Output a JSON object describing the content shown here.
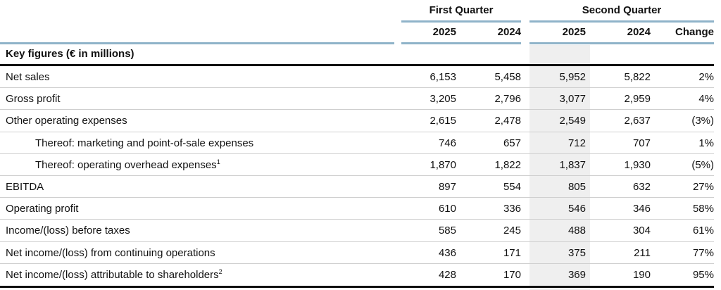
{
  "headers": {
    "group1": "First Quarter",
    "group2": "Second Quarter",
    "col1": "2025",
    "col2": "2024",
    "col3": "2025",
    "col4": "2024",
    "col5": "Change"
  },
  "section_title": "Key figures (€ in millions)",
  "rows": [
    {
      "label": "Net sales",
      "sup": "",
      "indent": false,
      "v": [
        "6,153",
        "5,458",
        "5,952",
        "5,822",
        "2%"
      ]
    },
    {
      "label": "Gross profit",
      "sup": "",
      "indent": false,
      "v": [
        "3,205",
        "2,796",
        "3,077",
        "2,959",
        "4%"
      ]
    },
    {
      "label": "Other operating expenses",
      "sup": "",
      "indent": false,
      "v": [
        "2,615",
        "2,478",
        "2,549",
        "2,637",
        "(3%)"
      ]
    },
    {
      "label": "Thereof: marketing and point-of-sale expenses",
      "sup": "",
      "indent": true,
      "v": [
        "746",
        "657",
        "712",
        "707",
        "1%"
      ]
    },
    {
      "label": "Thereof: operating overhead expenses",
      "sup": "1",
      "indent": true,
      "v": [
        "1,870",
        "1,822",
        "1,837",
        "1,930",
        "(5%)"
      ]
    },
    {
      "label": "EBITDA",
      "sup": "",
      "indent": false,
      "v": [
        "897",
        "554",
        "805",
        "632",
        "27%"
      ]
    },
    {
      "label": "Operating profit",
      "sup": "",
      "indent": false,
      "v": [
        "610",
        "336",
        "546",
        "346",
        "58%"
      ]
    },
    {
      "label": "Income/(loss) before taxes",
      "sup": "",
      "indent": false,
      "v": [
        "585",
        "245",
        "488",
        "304",
        "61%"
      ]
    },
    {
      "label": "Net income/(loss) from continuing operations",
      "sup": "",
      "indent": false,
      "v": [
        "436",
        "171",
        "375",
        "211",
        "77%"
      ]
    },
    {
      "label": "Net income/(loss) attributable to shareholders",
      "sup": "2",
      "indent": false,
      "v": [
        "428",
        "170",
        "369",
        "190",
        "95%"
      ]
    }
  ],
  "colors": {
    "accent_bar": "#8fb3c9",
    "shade": "#efefef",
    "rule": "#111111"
  }
}
